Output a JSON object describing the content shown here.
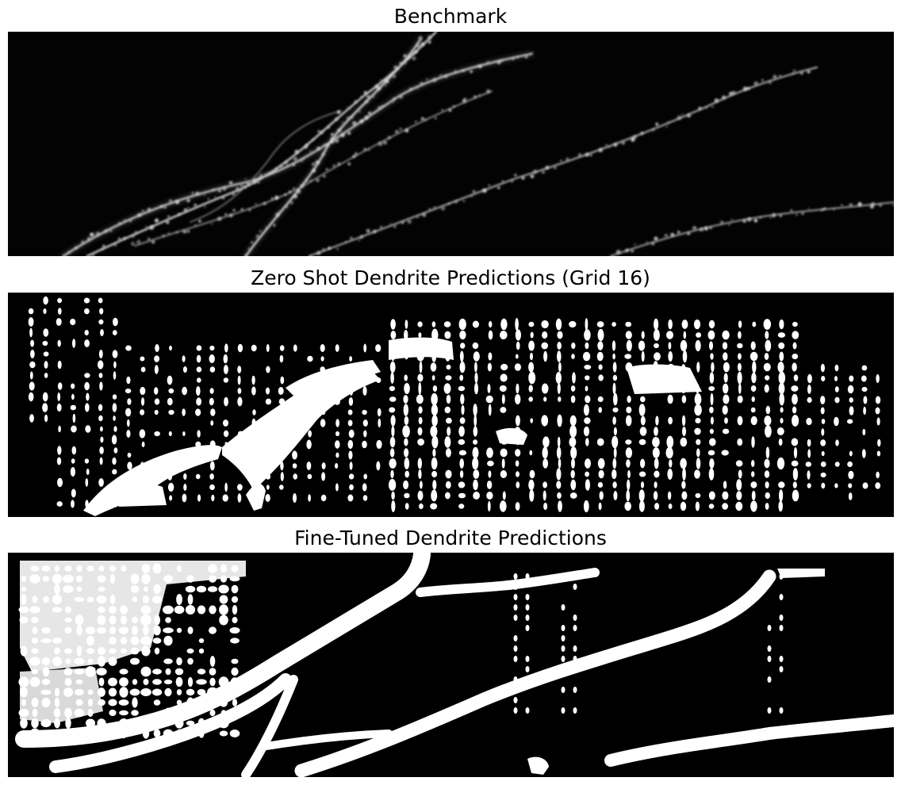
{
  "figure": {
    "panels": [
      {
        "title": "Benchmark"
      },
      {
        "title": "Zero Shot Dendrite Predictions (Grid 16)"
      },
      {
        "title": "Fine-Tuned Dendrite Predictions"
      }
    ],
    "colors": {
      "background": "#ffffff",
      "image_bg": "#000000",
      "foreground": "#ffffff"
    }
  }
}
